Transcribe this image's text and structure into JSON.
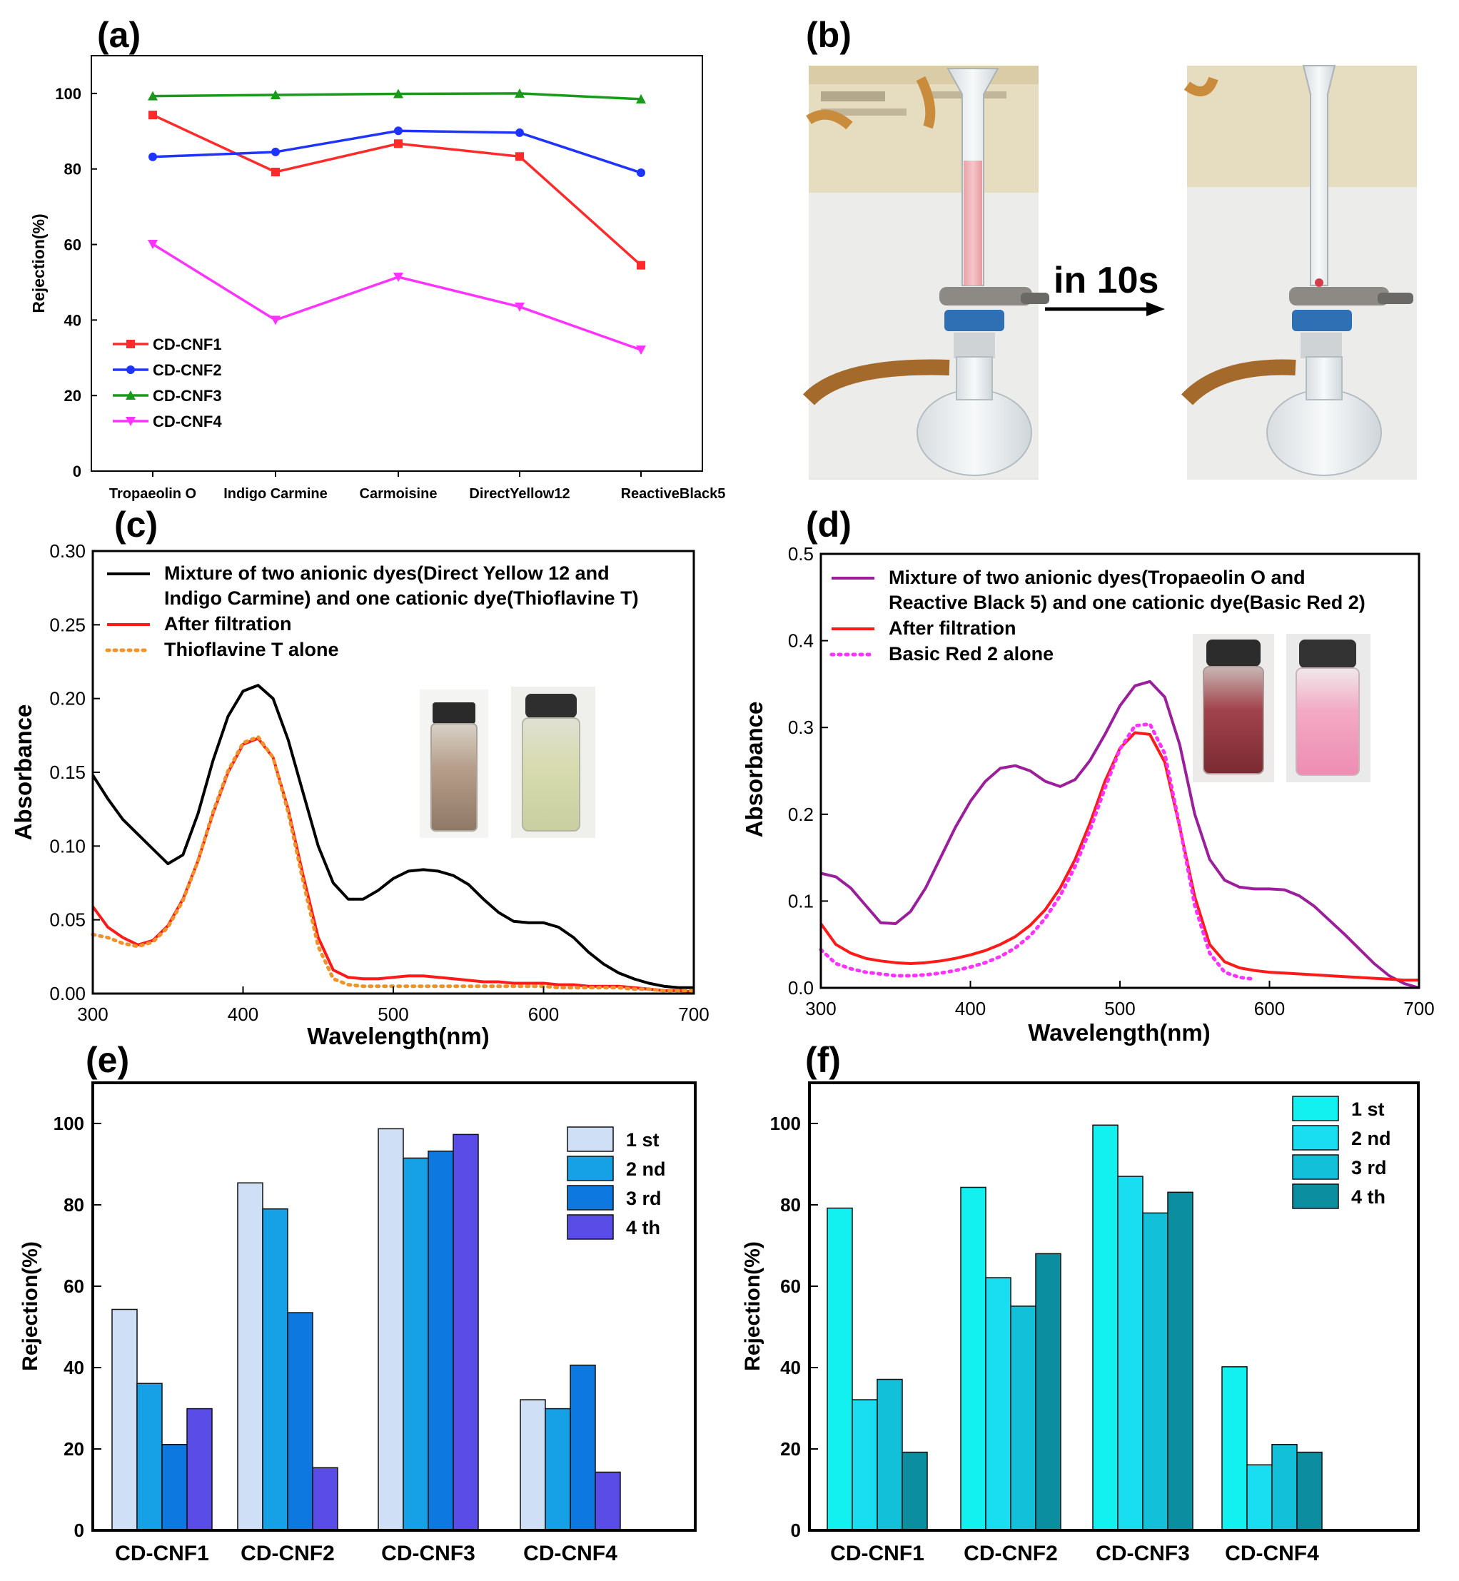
{
  "chart_data": [
    {
      "panel_label": "(a)",
      "type": "line",
      "categories": [
        "Tropaeolin O",
        "Indigo Carmine",
        "Carmoisine",
        "DirectYellow12",
        "ReactiveBlack5"
      ],
      "ylabel": "Rejection(%)",
      "ylim": [
        0,
        110
      ],
      "yticks": [
        0,
        20,
        40,
        60,
        80,
        100
      ],
      "legend_position": "bottom-left",
      "series": [
        {
          "name": "CD-CNF1",
          "color": "#ff2a2a",
          "marker": "square",
          "values": [
            94.3,
            79.2,
            86.7,
            83.3,
            54.5
          ]
        },
        {
          "name": "CD-CNF2",
          "color": "#1f33ff",
          "marker": "circle",
          "values": [
            83.2,
            84.5,
            90.1,
            89.6,
            79.0
          ]
        },
        {
          "name": "CD-CNF3",
          "color": "#1a9a1a",
          "marker": "triangle-up",
          "values": [
            99.3,
            99.6,
            99.9,
            100.0,
            98.5
          ]
        },
        {
          "name": "CD-CNF4",
          "color": "#ff33ff",
          "marker": "triangle-down",
          "values": [
            60.1,
            40.0,
            51.4,
            43.5,
            32.1
          ]
        }
      ]
    },
    {
      "panel_label": "(b)",
      "type": "photo",
      "arrow_label": "in 10s"
    },
    {
      "panel_label": "(c)",
      "type": "line",
      "xlabel": "Wavelength(nm)",
      "ylabel": "Absorbance",
      "xlim": [
        300,
        700
      ],
      "ylim": [
        0,
        0.3
      ],
      "xticks": [
        300,
        400,
        500,
        600,
        700
      ],
      "yticks": [
        0.0,
        0.05,
        0.1,
        0.15,
        0.2,
        0.25,
        0.3
      ],
      "ytick_labels": [
        "0.00",
        "0.05",
        "0.10",
        "0.15",
        "0.20",
        "0.25",
        "0.30"
      ],
      "legend_position": "top",
      "series": [
        {
          "name_lines": [
            "Mixture of two anionic dyes(Direct Yellow 12 and",
            "Indigo Carmine) and one cationic dye(Thioflavine T)"
          ],
          "color": "#000000",
          "style": "solid",
          "x": [
            300,
            310,
            320,
            330,
            340,
            350,
            360,
            370,
            380,
            390,
            400,
            410,
            420,
            430,
            440,
            450,
            460,
            470,
            480,
            490,
            500,
            510,
            520,
            530,
            540,
            550,
            560,
            570,
            580,
            590,
            600,
            610,
            620,
            630,
            640,
            650,
            660,
            670,
            680,
            690,
            700
          ],
          "y": [
            0.148,
            0.132,
            0.118,
            0.108,
            0.098,
            0.088,
            0.094,
            0.122,
            0.158,
            0.188,
            0.205,
            0.209,
            0.2,
            0.172,
            0.136,
            0.1,
            0.075,
            0.064,
            0.064,
            0.07,
            0.078,
            0.083,
            0.084,
            0.083,
            0.08,
            0.074,
            0.064,
            0.055,
            0.049,
            0.048,
            0.048,
            0.045,
            0.038,
            0.028,
            0.02,
            0.014,
            0.01,
            0.007,
            0.005,
            0.004,
            0.004
          ]
        },
        {
          "name": "After filtration",
          "color": "#ff1a1a",
          "style": "solid",
          "x": [
            300,
            310,
            320,
            330,
            340,
            350,
            360,
            370,
            380,
            390,
            400,
            410,
            420,
            430,
            440,
            450,
            460,
            470,
            480,
            490,
            500,
            510,
            520,
            530,
            540,
            550,
            560,
            570,
            580,
            590,
            600,
            610,
            620,
            630,
            640,
            650,
            660,
            670,
            680,
            690,
            700
          ],
          "y": [
            0.059,
            0.045,
            0.038,
            0.033,
            0.036,
            0.046,
            0.064,
            0.09,
            0.122,
            0.15,
            0.169,
            0.173,
            0.16,
            0.125,
            0.08,
            0.038,
            0.016,
            0.011,
            0.01,
            0.01,
            0.011,
            0.012,
            0.012,
            0.011,
            0.01,
            0.009,
            0.008,
            0.008,
            0.007,
            0.007,
            0.007,
            0.006,
            0.006,
            0.005,
            0.005,
            0.005,
            0.004,
            0.003,
            0.002,
            0.002,
            0.001
          ]
        },
        {
          "name": "Thioflavine T  alone",
          "color": "#f0922a",
          "style": "dotted",
          "x": [
            300,
            310,
            320,
            330,
            340,
            350,
            360,
            370,
            380,
            390,
            400,
            410,
            420,
            430,
            440,
            450,
            460,
            470,
            480,
            490,
            500,
            510,
            520,
            530,
            540,
            550,
            560,
            570,
            580,
            590,
            600,
            610,
            620,
            630,
            640,
            650,
            660,
            670,
            680,
            690,
            700
          ],
          "y": [
            0.04,
            0.038,
            0.034,
            0.032,
            0.035,
            0.045,
            0.063,
            0.09,
            0.123,
            0.151,
            0.17,
            0.174,
            0.16,
            0.123,
            0.076,
            0.032,
            0.01,
            0.006,
            0.005,
            0.005,
            0.005,
            0.005,
            0.005,
            0.005,
            0.005,
            0.005,
            0.005,
            0.005,
            0.005,
            0.005,
            0.005,
            0.004,
            0.004,
            0.004,
            0.004,
            0.004,
            0.003,
            0.003,
            0.002,
            0.002,
            0.002
          ]
        }
      ]
    },
    {
      "panel_label": "(d)",
      "type": "line",
      "xlabel": "Wavelength(nm)",
      "ylabel": "Absorbance",
      "xlim": [
        300,
        700
      ],
      "ylim": [
        0,
        0.5
      ],
      "xticks": [
        300,
        400,
        500,
        600,
        700
      ],
      "yticks": [
        0.0,
        0.1,
        0.2,
        0.3,
        0.4,
        0.5
      ],
      "ytick_labels": [
        "0.0",
        "0.1",
        "0.2",
        "0.3",
        "0.4",
        "0.5"
      ],
      "legend_position": "top",
      "series": [
        {
          "name_lines": [
            "Mixture of two anionic dyes(Tropaeolin O and",
            "Reactive Black 5) and  one cationic dye(Basic Red 2)"
          ],
          "color": "#9b1f9b",
          "style": "solid",
          "x": [
            300,
            310,
            320,
            330,
            340,
            350,
            360,
            370,
            380,
            390,
            400,
            410,
            420,
            430,
            440,
            450,
            460,
            470,
            480,
            490,
            500,
            510,
            520,
            530,
            540,
            550,
            560,
            570,
            580,
            590,
            600,
            610,
            620,
            630,
            640,
            650,
            660,
            670,
            680,
            690,
            700
          ],
          "y": [
            0.132,
            0.128,
            0.115,
            0.095,
            0.075,
            0.074,
            0.088,
            0.115,
            0.15,
            0.185,
            0.215,
            0.238,
            0.253,
            0.256,
            0.25,
            0.238,
            0.232,
            0.24,
            0.262,
            0.292,
            0.325,
            0.348,
            0.353,
            0.335,
            0.28,
            0.2,
            0.148,
            0.124,
            0.116,
            0.114,
            0.114,
            0.113,
            0.106,
            0.094,
            0.078,
            0.062,
            0.045,
            0.028,
            0.014,
            0.005,
            0.0
          ]
        },
        {
          "name": "After filtration",
          "color": "#ff1a1a",
          "style": "solid",
          "x": [
            300,
            310,
            320,
            330,
            340,
            350,
            360,
            370,
            380,
            390,
            400,
            410,
            420,
            430,
            440,
            450,
            460,
            470,
            480,
            490,
            500,
            510,
            520,
            530,
            540,
            550,
            560,
            570,
            580,
            590,
            600,
            610,
            620,
            630,
            640,
            650,
            660,
            670,
            680,
            690,
            700
          ],
          "y": [
            0.074,
            0.05,
            0.04,
            0.034,
            0.031,
            0.029,
            0.028,
            0.029,
            0.031,
            0.034,
            0.038,
            0.043,
            0.05,
            0.059,
            0.072,
            0.09,
            0.115,
            0.148,
            0.19,
            0.238,
            0.276,
            0.294,
            0.292,
            0.26,
            0.185,
            0.105,
            0.05,
            0.03,
            0.023,
            0.02,
            0.018,
            0.017,
            0.016,
            0.015,
            0.014,
            0.013,
            0.012,
            0.011,
            0.01,
            0.009,
            0.009
          ]
        },
        {
          "name": "Basic Red 2 alone",
          "color": "#ff33ff",
          "style": "dotted",
          "x": [
            300,
            310,
            320,
            330,
            340,
            350,
            360,
            370,
            380,
            390,
            400,
            410,
            420,
            430,
            440,
            450,
            460,
            470,
            480,
            490,
            500,
            510,
            520,
            530,
            540,
            550,
            560,
            570,
            580,
            590
          ],
          "y": [
            0.044,
            0.028,
            0.022,
            0.018,
            0.016,
            0.014,
            0.014,
            0.015,
            0.017,
            0.02,
            0.024,
            0.029,
            0.036,
            0.046,
            0.06,
            0.08,
            0.106,
            0.14,
            0.182,
            0.23,
            0.275,
            0.302,
            0.304,
            0.27,
            0.186,
            0.095,
            0.04,
            0.018,
            0.012,
            0.01
          ]
        }
      ]
    },
    {
      "panel_label": "(e)",
      "type": "bar",
      "categories": [
        "CD-CNF1",
        "CD-CNF2",
        "CD-CNF3",
        "CD-CNF4"
      ],
      "ylabel": "Rejection(%)",
      "ylim": [
        0,
        110
      ],
      "yticks": [
        0,
        20,
        40,
        60,
        80,
        100
      ],
      "legend_position": "top-right",
      "series": [
        {
          "name": "1 st",
          "color": "#cfe0f6",
          "values": [
            54.3,
            85.4,
            98.7,
            32.1
          ]
        },
        {
          "name": "2 nd",
          "color": "#16a0e6",
          "values": [
            36.1,
            79.0,
            91.5,
            29.9
          ]
        },
        {
          "name": "3 rd",
          "color": "#0c78e0",
          "values": [
            21.1,
            53.5,
            93.2,
            40.6
          ]
        },
        {
          "name": "4 th",
          "color": "#5a4ce6",
          "values": [
            29.9,
            15.4,
            97.3,
            14.3
          ]
        }
      ]
    },
    {
      "panel_label": "(f)",
      "type": "bar",
      "categories": [
        "CD-CNF1",
        "CD-CNF2",
        "CD-CNF3",
        "CD-CNF4"
      ],
      "ylabel": "Rejection(%)",
      "ylim": [
        0,
        110
      ],
      "yticks": [
        0,
        20,
        40,
        60,
        80,
        100
      ],
      "legend_position": "top-right",
      "series": [
        {
          "name": "1 st",
          "color": "#12f0f0",
          "values": [
            79.2,
            84.3,
            99.6,
            40.2
          ]
        },
        {
          "name": "2 nd",
          "color": "#19ddf0",
          "values": [
            32.1,
            62.1,
            87.0,
            16.1
          ]
        },
        {
          "name": "3 rd",
          "color": "#12c1d9",
          "values": [
            37.1,
            55.1,
            78.0,
            21.1
          ]
        },
        {
          "name": "4 th",
          "color": "#0b8fa0",
          "values": [
            19.2,
            68.0,
            83.1,
            19.2
          ]
        }
      ]
    }
  ]
}
